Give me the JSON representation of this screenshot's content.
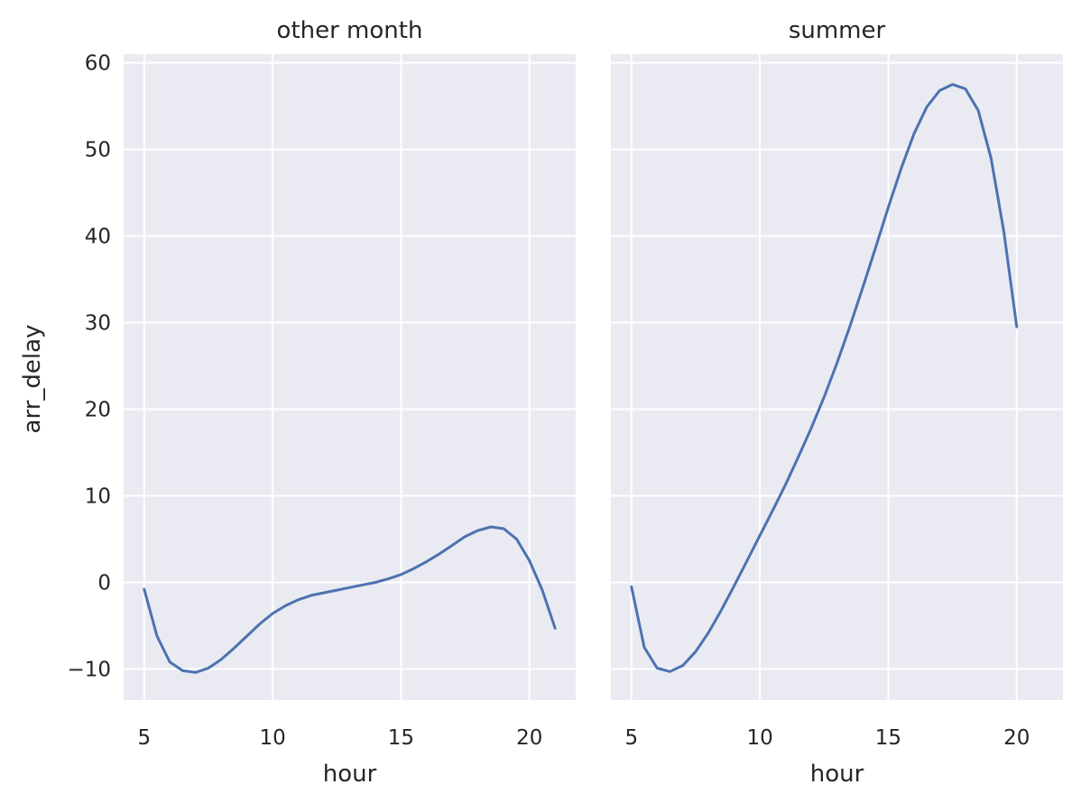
{
  "chart_data": {
    "type": "line",
    "line_color": "#4c72b0",
    "background_color": "#eaeaf2",
    "grid": true,
    "shared_y_axis": true,
    "ylabel": "arr_delay",
    "ylim": [
      -13.6,
      61
    ],
    "y_ticks": [
      -10,
      0,
      10,
      20,
      30,
      40,
      50,
      60
    ],
    "y_tick_labels": [
      "−10",
      "0",
      "10",
      "20",
      "30",
      "40",
      "50",
      "60"
    ],
    "facets": [
      {
        "title": "other month",
        "xlabel": "hour",
        "xlim": [
          4.2,
          21.8
        ],
        "x_ticks": [
          5,
          10,
          15,
          20
        ],
        "x_tick_labels": [
          "5",
          "10",
          "15",
          "20"
        ],
        "series": [
          {
            "x": [
              5,
              5.5,
              6,
              6.5,
              7,
              7.5,
              8,
              8.5,
              9,
              9.5,
              10,
              10.5,
              11,
              11.5,
              12,
              12.5,
              13,
              13.5,
              14,
              14.5,
              15,
              15.5,
              16,
              16.5,
              17,
              17.5,
              18,
              18.5,
              19,
              19.5,
              20,
              20.5,
              21
            ],
            "y": [
              -0.8,
              -6.2,
              -9.2,
              -10.2,
              -10.4,
              -9.9,
              -8.9,
              -7.6,
              -6.2,
              -4.8,
              -3.6,
              -2.7,
              -2.0,
              -1.5,
              -1.2,
              -0.9,
              -0.6,
              -0.3,
              0.0,
              0.4,
              0.9,
              1.6,
              2.4,
              3.3,
              4.3,
              5.3,
              6.0,
              6.4,
              6.2,
              5.0,
              2.5,
              -0.9,
              -5.3
            ]
          }
        ]
      },
      {
        "title": "summer",
        "xlabel": "hour",
        "xlim": [
          4.2,
          21.8
        ],
        "x_ticks": [
          5,
          10,
          15,
          20
        ],
        "x_tick_labels": [
          "5",
          "10",
          "15",
          "20"
        ],
        "series": [
          {
            "x": [
              5,
              5.5,
              6,
              6.5,
              7,
              7.5,
              8,
              8.5,
              9,
              9.5,
              10,
              10.5,
              11,
              11.5,
              12,
              12.5,
              13,
              13.5,
              14,
              14.5,
              15,
              15.5,
              16,
              16.5,
              17,
              17.5,
              18,
              18.5,
              19,
              19.5,
              20
            ],
            "y": [
              -0.5,
              -7.5,
              -9.9,
              -10.3,
              -9.6,
              -8.0,
              -5.8,
              -3.2,
              -0.4,
              2.5,
              5.4,
              8.3,
              11.3,
              14.5,
              17.8,
              21.4,
              25.3,
              29.5,
              34.0,
              38.6,
              43.3,
              47.8,
              51.8,
              54.9,
              56.8,
              57.5,
              57.0,
              54.5,
              49.0,
              40.5,
              29.5
            ]
          }
        ]
      }
    ]
  }
}
